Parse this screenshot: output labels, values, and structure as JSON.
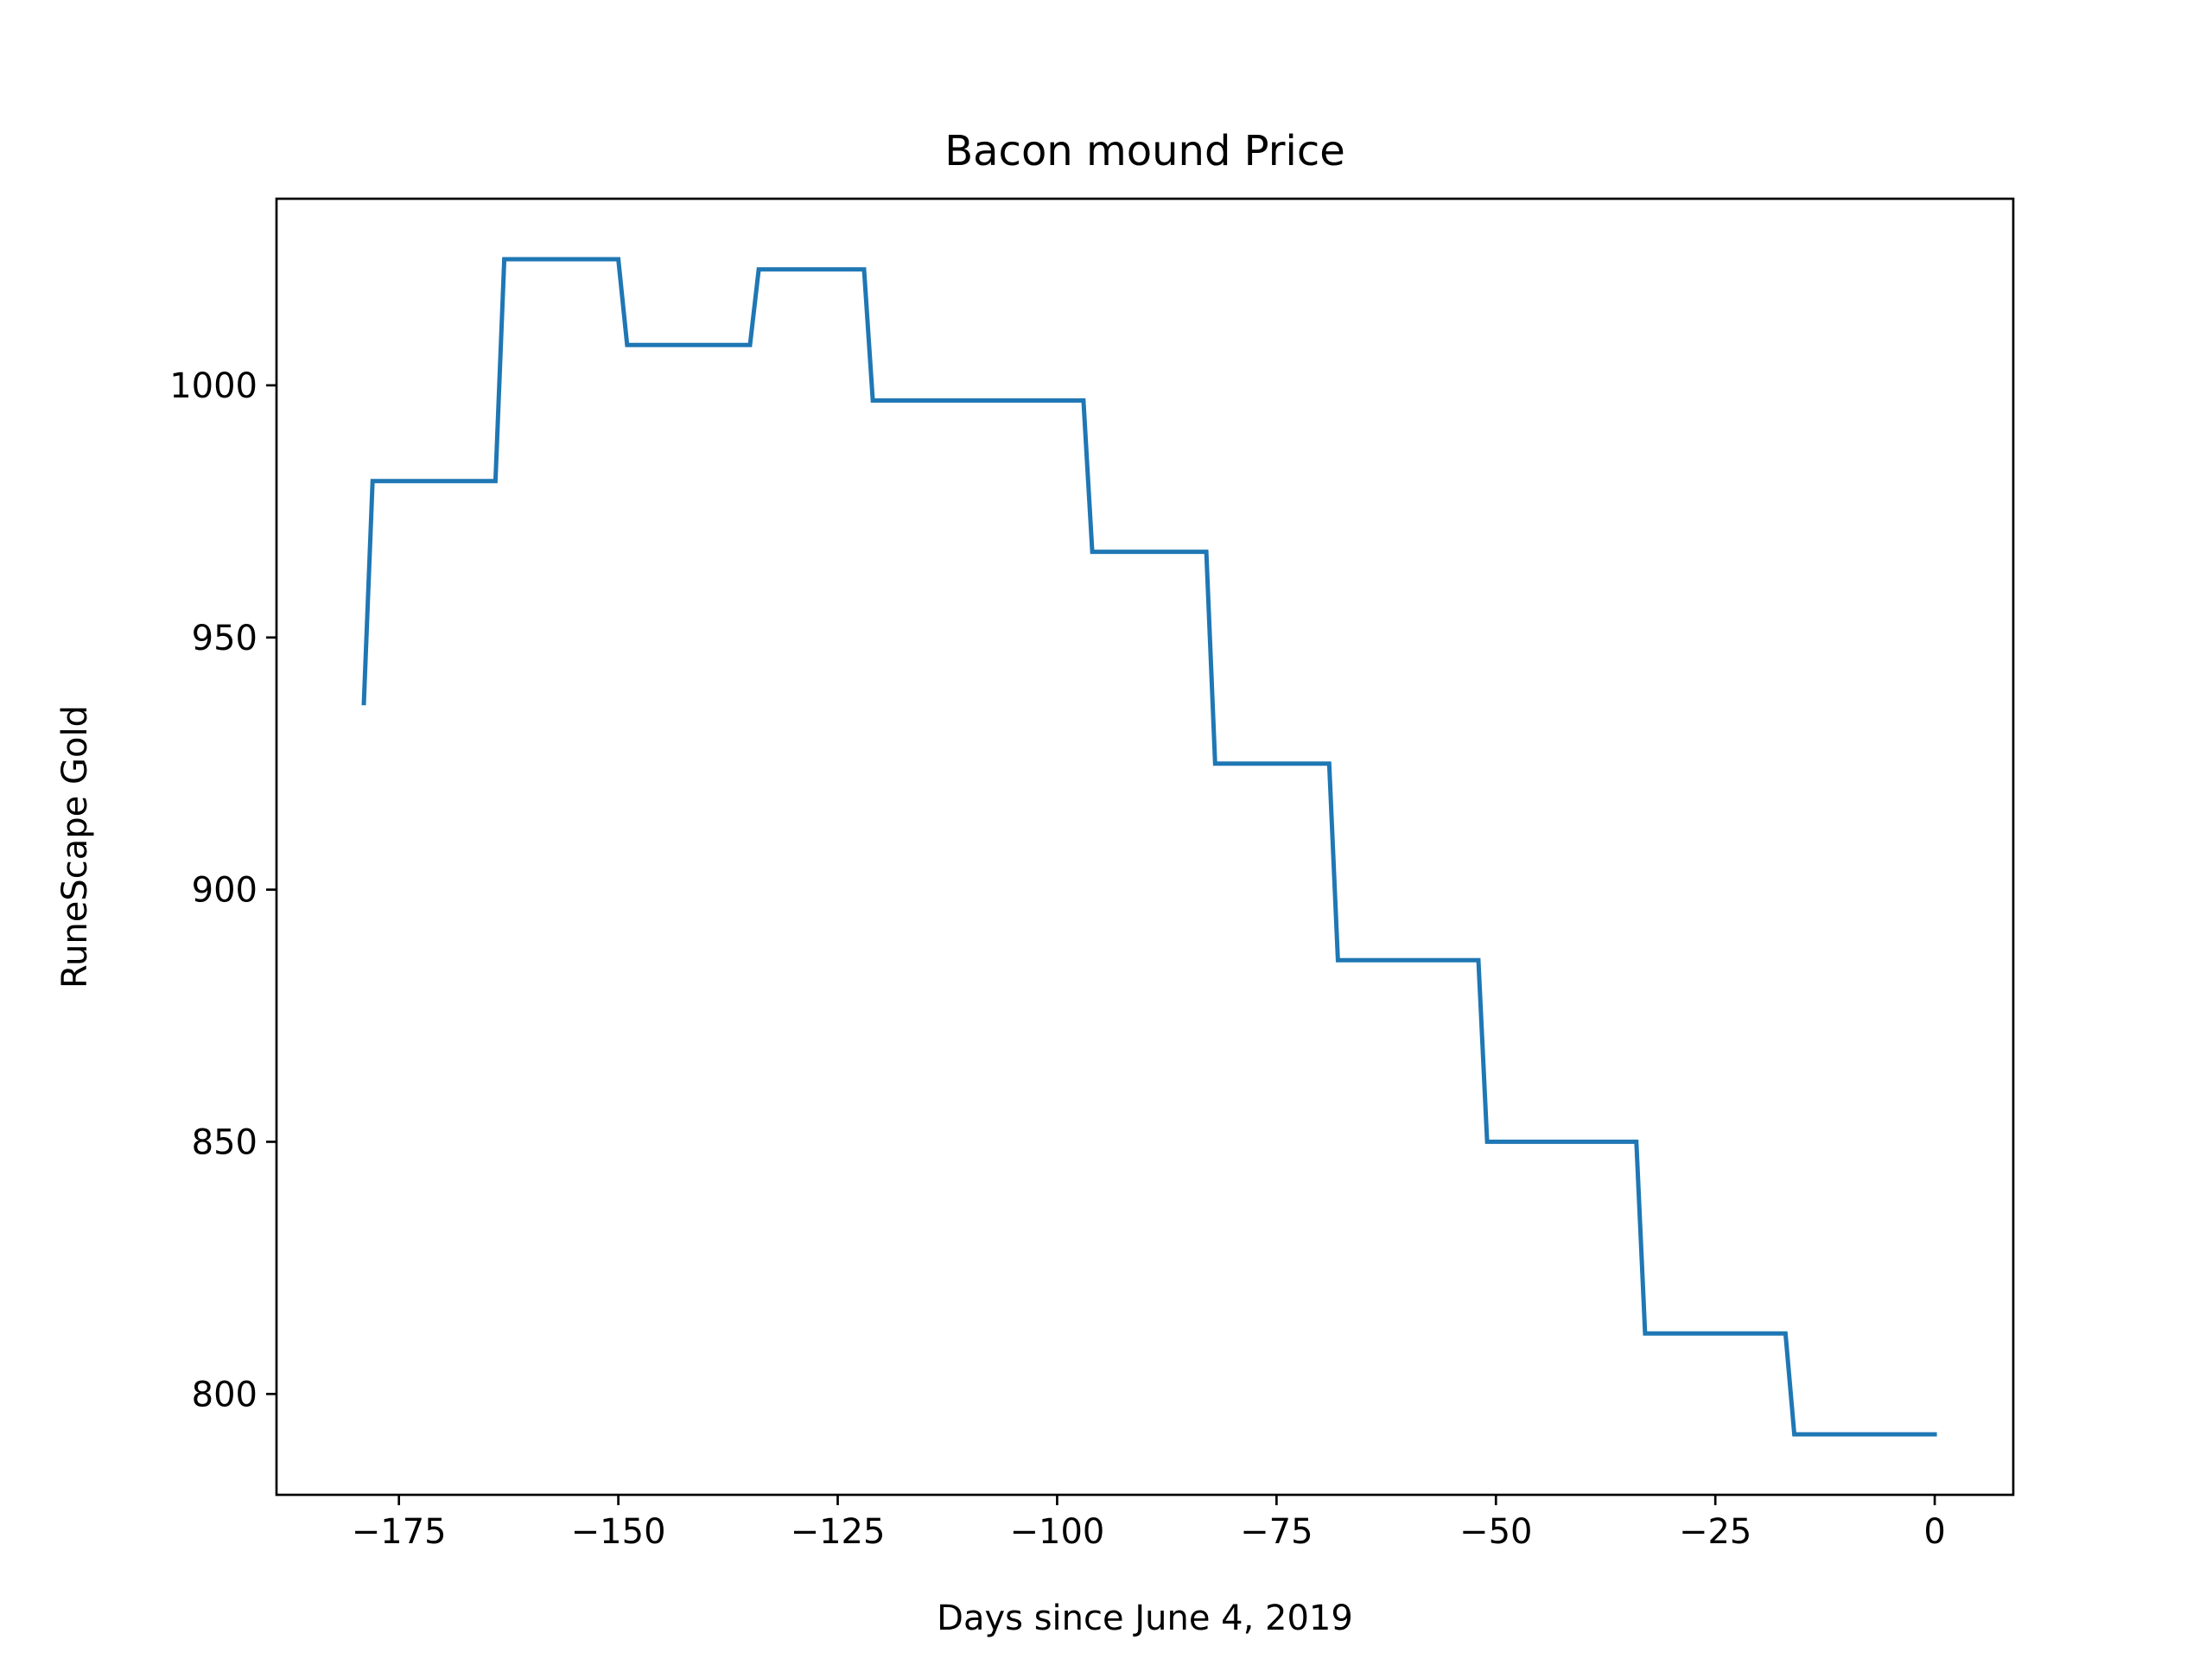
{
  "chart_data": {
    "type": "line",
    "title": "Bacon mound Price",
    "xlabel": "Days since June 4, 2019",
    "ylabel": "RuneScape Gold",
    "xlim": [
      -188.95,
      8.95
    ],
    "ylim": [
      780,
      1037
    ],
    "x_ticks": [
      -175,
      -150,
      -125,
      -100,
      -75,
      -50,
      -25,
      0
    ],
    "x_tick_labels": [
      "−175",
      "−150",
      "−125",
      "−100",
      "−75",
      "−50",
      "−25",
      "0"
    ],
    "y_ticks": [
      800,
      850,
      900,
      950,
      1000
    ],
    "y_tick_labels": [
      "800",
      "850",
      "900",
      "950",
      "1000"
    ],
    "grid": false,
    "series": [
      {
        "color": "#1f77b4",
        "x": [
          -179,
          -178,
          -164,
          -163,
          -150,
          -149,
          -135,
          -134,
          -122,
          -121,
          -97,
          -96,
          -83,
          -82,
          -69,
          -68,
          -52,
          -51,
          -34,
          -33,
          -17,
          -16,
          0
        ],
        "y": [
          937,
          981,
          981,
          1025,
          1025,
          1008,
          1008,
          1023,
          1023,
          997,
          997,
          967,
          967,
          925,
          925,
          886,
          886,
          850,
          850,
          812,
          812,
          792,
          792
        ]
      }
    ]
  }
}
